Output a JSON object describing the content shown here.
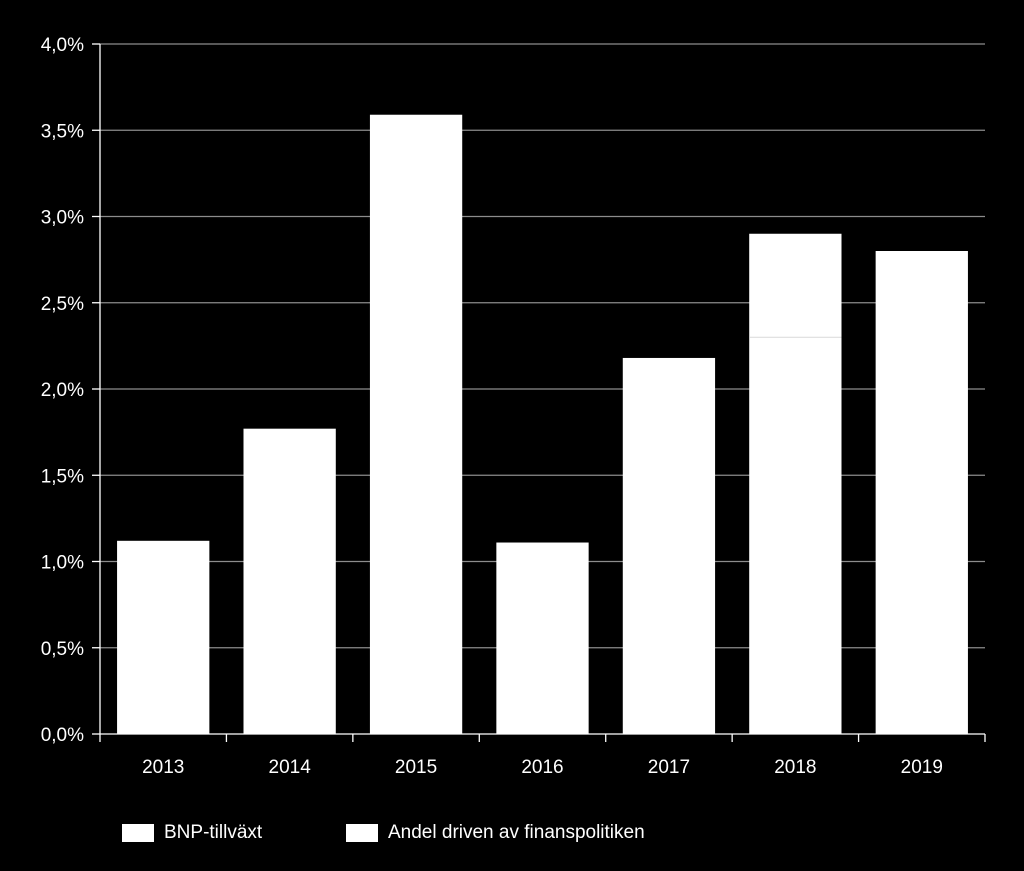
{
  "chart_data": {
    "type": "bar",
    "stacked": true,
    "categories": [
      "2013",
      "2014",
      "2015",
      "2016",
      "2017",
      "2018",
      "2019"
    ],
    "series": [
      {
        "name": "BNP-tillväxt",
        "values": [
          1.12,
          1.77,
          3.59,
          1.11,
          2.18,
          2.3,
          2.8
        ],
        "color": "#ffffff"
      },
      {
        "name": "Andel driven av finanspolitiken",
        "values": [
          0,
          0,
          0,
          0,
          0,
          0.6,
          0
        ],
        "color": "#ffffff"
      }
    ],
    "ylim": [
      0,
      4.0
    ],
    "yticks": [
      "0,0%",
      "0,5%",
      "1,0%",
      "1,5%",
      "2,0%",
      "2,5%",
      "3,0%",
      "3,5%",
      "4,0%"
    ],
    "ytick_values": [
      0,
      0.5,
      1.0,
      1.5,
      2.0,
      2.5,
      3.0,
      3.5,
      4.0
    ],
    "grid": true,
    "legend_position": "bottom",
    "background": "#000000",
    "grid_color": "#8c8c8c"
  },
  "legend": {
    "item1": "BNP-tillväxt",
    "item2": "Andel driven av finanspolitiken"
  }
}
